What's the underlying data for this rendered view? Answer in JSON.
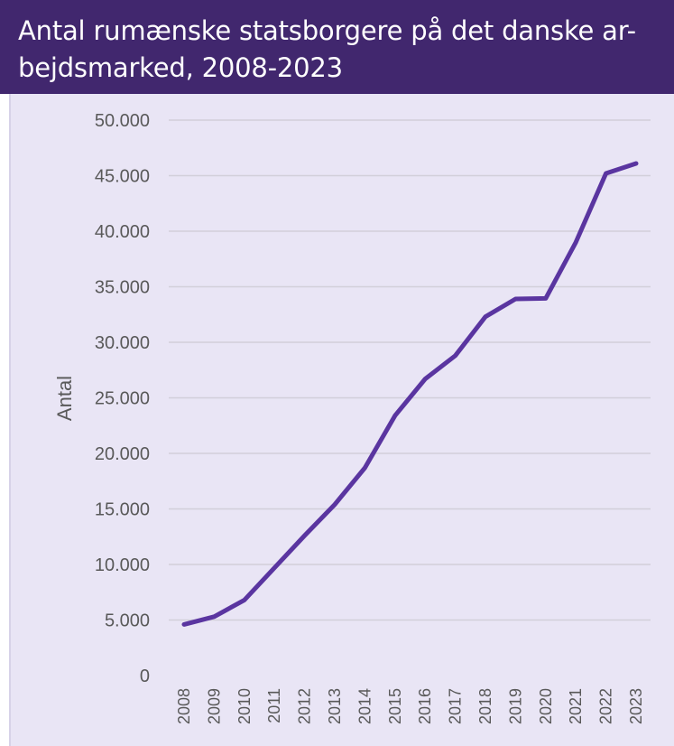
{
  "header": {
    "title": "Antal rumænske statsborgere på det danske ar-bejdsmarked, 2008-2023"
  },
  "colors": {
    "title_bar": "#41276e",
    "chart_background": "#e9e5f5",
    "series_line": "#5a35a0",
    "gridlines": "#d2cfda",
    "tick_text": "#595959"
  },
  "chart_data": {
    "type": "line",
    "title": "Antal rumænske statsborgere på det danske ar-bejdsmarked, 2008-2023",
    "xlabel": "",
    "ylabel": "Antal",
    "categories": [
      "2008",
      "2009",
      "2010",
      "2011",
      "2012",
      "2013",
      "2014",
      "2015",
      "2016",
      "2017",
      "2018",
      "2019",
      "2020",
      "2021",
      "2022",
      "2023"
    ],
    "values": [
      4600,
      5300,
      6800,
      9700,
      12600,
      15400,
      18700,
      23400,
      26700,
      28800,
      32300,
      33900,
      33950,
      39000,
      45200,
      46100
    ],
    "yticks": [
      "0",
      "5.000",
      "10.000",
      "15.000",
      "20.000",
      "25.000",
      "30.000",
      "35.000",
      "40.000",
      "45.000",
      "50.000"
    ],
    "ytick_values": [
      0,
      5000,
      10000,
      15000,
      20000,
      25000,
      30000,
      35000,
      40000,
      45000,
      50000
    ],
    "ylim": [
      0,
      50000
    ],
    "grid": true,
    "legend": "none"
  }
}
